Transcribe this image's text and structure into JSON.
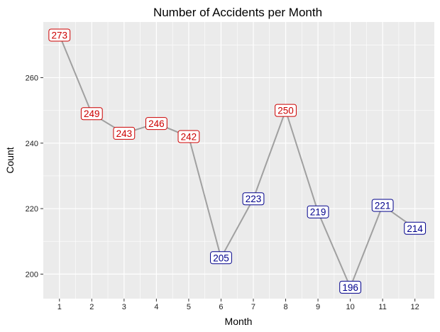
{
  "chart_data": {
    "type": "line",
    "title": "Number of Accidents per Month",
    "xlabel": "Month",
    "ylabel": "Count",
    "x": [
      1,
      2,
      3,
      4,
      5,
      6,
      7,
      8,
      9,
      10,
      11,
      12
    ],
    "values": [
      273,
      249,
      243,
      246,
      242,
      205,
      223,
      250,
      219,
      196,
      221,
      214
    ],
    "xlim": [
      0.5,
      12.6
    ],
    "ylim": [
      192.5,
      277
    ],
    "x_ticks": [
      "1",
      "2",
      "3",
      "4",
      "5",
      "6",
      "7",
      "8",
      "9",
      "10",
      "11",
      "12"
    ],
    "y_ticks": [
      "200",
      "220",
      "240",
      "260"
    ],
    "grid": true,
    "colors": {
      "panel_bg": "#EBEBEB",
      "grid": "#FFFFFF",
      "line": "#A0A0A0",
      "label_high": "#CC0000",
      "label_low": "#00008B",
      "label_bg": "#FFFFFF"
    },
    "label_color_rule": "red when count >= 240, blue otherwise"
  }
}
